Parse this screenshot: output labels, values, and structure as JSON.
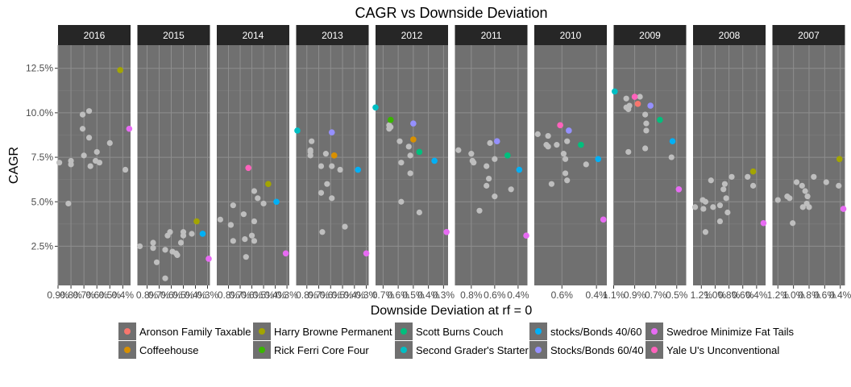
{
  "chart_data": {
    "type": "scatter",
    "title": "CAGR vs Downside Deviation",
    "xlabel": "Downside Deviation at rf = 0",
    "ylabel": "CAGR",
    "y_ticks": [
      "12.5%",
      "10.0%",
      "7.5%",
      "5.0%",
      "2.5%"
    ],
    "y_tick_values": [
      12.5,
      10.0,
      7.5,
      5.0,
      2.5
    ],
    "ylim": [
      0.3,
      13.8
    ],
    "x_reversed": true,
    "grid": true,
    "legend_position": "bottom",
    "facets": [
      {
        "label": "2016",
        "xlim": [
          9.0,
          3.4
        ],
        "x_ticks": [
          {
            "label": "0.9%",
            "value": 9.0
          },
          {
            "label": "0.8%",
            "value": 8.0
          },
          {
            "label": "0.7%",
            "value": 7.0
          },
          {
            "label": "0.6%",
            "value": 6.0
          },
          {
            "label": "0.5%",
            "value": 5.0
          },
          {
            "label": "0.4%",
            "value": 4.0
          }
        ],
        "grey_points": [
          [
            8.9,
            7.2
          ],
          [
            8.2,
            4.9
          ],
          [
            8.0,
            7.3
          ],
          [
            8.0,
            7.1
          ],
          [
            7.1,
            9.9
          ],
          [
            7.1,
            9.1
          ],
          [
            7.0,
            7.6
          ],
          [
            6.6,
            10.1
          ],
          [
            6.6,
            8.6
          ],
          [
            6.5,
            7.0
          ],
          [
            6.1,
            7.3
          ],
          [
            6.0,
            7.8
          ],
          [
            5.8,
            7.2
          ],
          [
            5.0,
            8.3
          ],
          [
            3.8,
            6.8
          ]
        ],
        "series_points": [
          {
            "series": "Harry Browne Permanent",
            "x": 4.2,
            "y": 12.4
          },
          {
            "series": "Swedroe Minimize Fat Tails",
            "x": 3.5,
            "y": 9.1
          }
        ]
      },
      {
        "label": "2015",
        "xlim": [
          8.8,
          2.8
        ],
        "x_ticks": [
          {
            "label": "0.8%",
            "value": 8.0
          },
          {
            "label": "0.7%",
            "value": 7.0
          },
          {
            "label": "0.6%",
            "value": 6.0
          },
          {
            "label": "0.5%",
            "value": 5.0
          },
          {
            "label": "0.4%",
            "value": 4.0
          },
          {
            "label": "0.3%",
            "value": 3.0
          }
        ],
        "grey_points": [
          [
            8.6,
            2.5
          ],
          [
            7.5,
            2.7
          ],
          [
            7.5,
            2.4
          ],
          [
            7.2,
            1.6
          ],
          [
            6.5,
            0.7
          ],
          [
            6.5,
            2.3
          ],
          [
            6.3,
            3.1
          ],
          [
            6.1,
            3.3
          ],
          [
            5.9,
            2.2
          ],
          [
            5.6,
            2.1
          ],
          [
            5.5,
            2.0
          ],
          [
            5.2,
            2.7
          ],
          [
            5.0,
            3.1
          ],
          [
            5.0,
            3.3
          ],
          [
            4.3,
            3.2
          ]
        ],
        "series_points": [
          {
            "series": "Harry Browne Permanent",
            "x": 3.9,
            "y": 3.9
          },
          {
            "series": "stocks/Bonds 40/60",
            "x": 3.4,
            "y": 3.2
          },
          {
            "series": "Swedroe Minimize Fat Tails",
            "x": 2.9,
            "y": 1.8
          }
        ]
      },
      {
        "label": "2014",
        "xlim": [
          9.0,
          2.8
        ],
        "x_ticks": [
          {
            "label": "0.8%",
            "value": 8.0
          },
          {
            "label": "0.7%",
            "value": 7.0
          },
          {
            "label": "0.6%",
            "value": 6.0
          },
          {
            "label": "0.5%",
            "value": 5.0
          },
          {
            "label": "0.4%",
            "value": 4.0
          },
          {
            "label": "0.3%",
            "value": 3.0
          }
        ],
        "grey_points": [
          [
            8.7,
            4.0
          ],
          [
            7.8,
            3.7
          ],
          [
            7.8,
            3.7
          ],
          [
            7.6,
            4.8
          ],
          [
            7.6,
            2.8
          ],
          [
            6.7,
            4.3
          ],
          [
            6.5,
            1.9
          ],
          [
            6.6,
            2.9
          ],
          [
            6.0,
            3.1
          ],
          [
            5.8,
            3.9
          ],
          [
            5.8,
            2.8
          ],
          [
            5.8,
            5.6
          ],
          [
            5.5,
            5.2
          ],
          [
            5.0,
            4.9
          ]
        ],
        "series_points": [
          {
            "series": "Yale U's Unconventional",
            "x": 6.3,
            "y": 6.9
          },
          {
            "series": "Harry Browne Permanent",
            "x": 4.6,
            "y": 6.0
          },
          {
            "series": "stocks/Bonds 40/60",
            "x": 3.9,
            "y": 5.0
          },
          {
            "series": "Swedroe Minimize Fat Tails",
            "x": 3.1,
            "y": 2.1
          }
        ]
      },
      {
        "label": "2013",
        "xlim": [
          8.9,
          2.8
        ],
        "x_ticks": [
          {
            "label": "0.8%",
            "value": 8.0
          },
          {
            "label": "0.7%",
            "value": 7.0
          },
          {
            "label": "0.6%",
            "value": 6.0
          },
          {
            "label": "0.5%",
            "value": 5.0
          },
          {
            "label": "0.4%",
            "value": 4.0
          },
          {
            "label": "0.3%",
            "value": 3.0
          }
        ],
        "grey_points": [
          [
            7.6,
            8.4
          ],
          [
            7.7,
            7.9
          ],
          [
            7.7,
            7.8
          ],
          [
            7.7,
            7.6
          ],
          [
            6.8,
            7.0
          ],
          [
            6.7,
            3.3
          ],
          [
            6.8,
            5.5
          ],
          [
            6.4,
            7.7
          ],
          [
            6.3,
            6.0
          ],
          [
            5.9,
            5.2
          ],
          [
            5.9,
            7.0
          ],
          [
            5.2,
            6.8
          ],
          [
            4.8,
            3.6
          ]
        ],
        "series_points": [
          {
            "series": "Second Grader's Starter",
            "x": 8.8,
            "y": 9.0
          },
          {
            "series": "Stocks/Bonds 60/40",
            "x": 5.9,
            "y": 8.9
          },
          {
            "series": "Coffeehouse",
            "x": 5.7,
            "y": 7.6
          },
          {
            "series": "stocks/Bonds 40/60",
            "x": 3.7,
            "y": 6.8
          },
          {
            "series": "Swedroe Minimize Fat Tails",
            "x": 3.0,
            "y": 2.1
          }
        ]
      },
      {
        "label": "2012",
        "xlim": [
          7.5,
          2.7
        ],
        "x_ticks": [
          {
            "label": "0.7%",
            "value": 7.0
          },
          {
            "label": "0.6%",
            "value": 6.0
          },
          {
            "label": "0.5%",
            "value": 5.0
          },
          {
            "label": "0.4%",
            "value": 4.0
          },
          {
            "label": "0.3%",
            "value": 3.0
          }
        ],
        "grey_points": [
          [
            6.6,
            9.3
          ],
          [
            6.6,
            9.1
          ],
          [
            6.5,
            9.2
          ],
          [
            5.9,
            8.4
          ],
          [
            5.8,
            7.2
          ],
          [
            5.8,
            5.0
          ],
          [
            5.3,
            8.1
          ],
          [
            5.2,
            6.6
          ],
          [
            5.2,
            7.6
          ],
          [
            4.6,
            4.4
          ]
        ],
        "series_points": [
          {
            "series": "Second Grader's Starter",
            "x": 7.5,
            "y": 10.3
          },
          {
            "series": "Rick Ferri Core Four",
            "x": 6.5,
            "y": 9.6
          },
          {
            "series": "Stocks/Bonds 60/40",
            "x": 5.0,
            "y": 9.4
          },
          {
            "series": "Coffeehouse",
            "x": 5.0,
            "y": 8.5
          },
          {
            "series": "Scott Burns Couch",
            "x": 4.6,
            "y": 7.8
          },
          {
            "series": "stocks/Bonds 40/60",
            "x": 3.6,
            "y": 7.3
          },
          {
            "series": "Swedroe Minimize Fat Tails",
            "x": 2.8,
            "y": 3.3
          }
        ]
      },
      {
        "label": "2011",
        "xlim": [
          9.4,
          3.2
        ],
        "x_ticks": [
          {
            "label": "0.8%",
            "value": 8.0
          },
          {
            "label": "0.6%",
            "value": 6.0
          },
          {
            "label": "0.4%",
            "value": 4.0
          }
        ],
        "grey_points": [
          [
            9.1,
            7.9
          ],
          [
            8.0,
            7.7
          ],
          [
            7.9,
            7.3
          ],
          [
            7.8,
            7.2
          ],
          [
            7.3,
            4.5
          ],
          [
            6.7,
            7.0
          ],
          [
            6.7,
            5.9
          ],
          [
            6.5,
            6.3
          ],
          [
            6.4,
            8.3
          ],
          [
            6.0,
            7.4
          ],
          [
            6.0,
            5.3
          ],
          [
            4.6,
            5.7
          ]
        ],
        "series_points": [
          {
            "series": "Stocks/Bonds 60/40",
            "x": 5.8,
            "y": 8.4
          },
          {
            "series": "Scott Burns Couch",
            "x": 4.9,
            "y": 7.6
          },
          {
            "series": "stocks/Bonds 40/60",
            "x": 3.9,
            "y": 6.8
          },
          {
            "series": "Swedroe Minimize Fat Tails",
            "x": 3.3,
            "y": 3.1
          }
        ]
      },
      {
        "label": "2010",
        "xlim": [
          7.6,
          3.4
        ],
        "x_ticks": [
          {
            "label": "0.6%",
            "value": 6.0
          },
          {
            "label": "0.4%",
            "value": 4.0
          }
        ],
        "grey_points": [
          [
            7.4,
            8.8
          ],
          [
            6.9,
            8.2
          ],
          [
            6.8,
            8.7
          ],
          [
            6.8,
            8.1
          ],
          [
            6.6,
            6.0
          ],
          [
            6.3,
            8.2
          ],
          [
            5.9,
            7.7
          ],
          [
            5.8,
            7.4
          ],
          [
            5.8,
            6.6
          ],
          [
            5.7,
            6.2
          ],
          [
            5.7,
            8.4
          ],
          [
            4.6,
            7.1
          ]
        ],
        "series_points": [
          {
            "series": "Yale U's Unconventional",
            "x": 6.1,
            "y": 9.3
          },
          {
            "series": "Stocks/Bonds 60/40",
            "x": 5.6,
            "y": 9.0
          },
          {
            "series": "Scott Burns Couch",
            "x": 4.9,
            "y": 8.2
          },
          {
            "series": "stocks/Bonds 40/60",
            "x": 3.9,
            "y": 7.4
          },
          {
            "series": "Swedroe Minimize Fat Tails",
            "x": 3.6,
            "y": 4.0
          }
        ]
      },
      {
        "label": "2009",
        "xlim": [
          11.0,
          4.1
        ],
        "x_ticks": [
          {
            "label": "1.1%",
            "value": 11.0
          },
          {
            "label": "0.9%",
            "value": 9.0
          },
          {
            "label": "0.7%",
            "value": 7.0
          },
          {
            "label": "0.5%",
            "value": 5.0
          }
        ],
        "grey_points": [
          [
            9.8,
            10.8
          ],
          [
            9.8,
            10.3
          ],
          [
            9.6,
            10.2
          ],
          [
            9.5,
            10.4
          ],
          [
            9.6,
            7.8
          ],
          [
            8.5,
            10.9
          ],
          [
            8.0,
            9.9
          ],
          [
            7.9,
            9.4
          ],
          [
            7.9,
            9.0
          ],
          [
            8.0,
            8.0
          ],
          [
            5.5,
            7.5
          ]
        ],
        "series_points": [
          {
            "series": "Second Grader's Starter",
            "x": 10.9,
            "y": 11.2
          },
          {
            "series": "Yale U's Unconventional",
            "x": 9.0,
            "y": 10.9
          },
          {
            "series": "Aronson Family Taxable",
            "x": 8.7,
            "y": 10.5
          },
          {
            "series": "Stocks/Bonds 60/40",
            "x": 7.5,
            "y": 10.4
          },
          {
            "series": "Scott Burns Couch",
            "x": 6.6,
            "y": 9.6
          },
          {
            "series": "stocks/Bonds 40/60",
            "x": 5.4,
            "y": 8.4
          },
          {
            "series": "Swedroe Minimize Fat Tails",
            "x": 4.8,
            "y": 5.7
          }
        ]
      },
      {
        "label": "2008",
        "xlim": [
          13.2,
          2.7
        ],
        "x_ticks": [
          {
            "label": "1.2%",
            "value": 12.0
          },
          {
            "label": "1.0%",
            "value": 10.0
          },
          {
            "label": "0.8%",
            "value": 8.0
          },
          {
            "label": "0.6%",
            "value": 6.0
          },
          {
            "label": "0.4%",
            "value": 4.0
          }
        ],
        "grey_points": [
          [
            12.9,
            4.7
          ],
          [
            11.8,
            5.1
          ],
          [
            11.7,
            4.6
          ],
          [
            11.4,
            5.0
          ],
          [
            11.4,
            3.3
          ],
          [
            10.6,
            6.2
          ],
          [
            10.3,
            4.7
          ],
          [
            9.3,
            3.9
          ],
          [
            9.3,
            4.8
          ],
          [
            8.8,
            5.7
          ],
          [
            8.6,
            6.0
          ],
          [
            8.4,
            5.2
          ],
          [
            8.2,
            4.4
          ],
          [
            7.6,
            6.4
          ],
          [
            5.3,
            6.4
          ],
          [
            4.5,
            5.9
          ]
        ],
        "series_points": [
          {
            "series": "Harry Browne Permanent",
            "x": 4.5,
            "y": 6.7
          },
          {
            "series": "Swedroe Minimize Fat Tails",
            "x": 3.0,
            "y": 3.8
          }
        ]
      },
      {
        "label": "2007",
        "xlim": [
          12.7,
          3.4
        ],
        "x_ticks": [
          {
            "label": "1.2%",
            "value": 12.0
          },
          {
            "label": "1.0%",
            "value": 10.0
          },
          {
            "label": "0.8%",
            "value": 8.0
          },
          {
            "label": "0.6%",
            "value": 6.0
          },
          {
            "label": "0.4%",
            "value": 4.0
          }
        ],
        "grey_points": [
          [
            12.0,
            5.1
          ],
          [
            10.8,
            5.3
          ],
          [
            10.5,
            5.2
          ],
          [
            10.1,
            3.8
          ],
          [
            9.6,
            6.1
          ],
          [
            8.9,
            5.9
          ],
          [
            8.8,
            4.7
          ],
          [
            8.5,
            5.6
          ],
          [
            8.3,
            4.9
          ],
          [
            8.2,
            5.3
          ],
          [
            8.0,
            4.7
          ],
          [
            7.4,
            6.4
          ],
          [
            5.8,
            6.1
          ],
          [
            4.2,
            5.9
          ]
        ],
        "series_points": [
          {
            "series": "Harry Browne Permanent",
            "x": 4.1,
            "y": 7.4
          },
          {
            "series": "Swedroe Minimize Fat Tails",
            "x": 3.6,
            "y": 4.6
          }
        ]
      }
    ],
    "grey_color": "#bebebe",
    "series": [
      {
        "name": "Aronson Family Taxable",
        "color": "#f8766d"
      },
      {
        "name": "Coffeehouse",
        "color": "#d89000"
      },
      {
        "name": "Harry Browne Permanent",
        "color": "#a3a500"
      },
      {
        "name": "Rick Ferri Core Four",
        "color": "#39b600"
      },
      {
        "name": "Scott Burns Couch",
        "color": "#00bf7d"
      },
      {
        "name": "Second Grader's Starter",
        "color": "#00bfc4"
      },
      {
        "name": "stocks/Bonds 40/60",
        "color": "#00b0f6"
      },
      {
        "name": "Stocks/Bonds 60/40",
        "color": "#9590ff"
      },
      {
        "name": "Swedroe Minimize Fat Tails",
        "color": "#e76bf3"
      },
      {
        "name": "Yale U's Unconventional",
        "color": "#ff62bc"
      }
    ]
  }
}
